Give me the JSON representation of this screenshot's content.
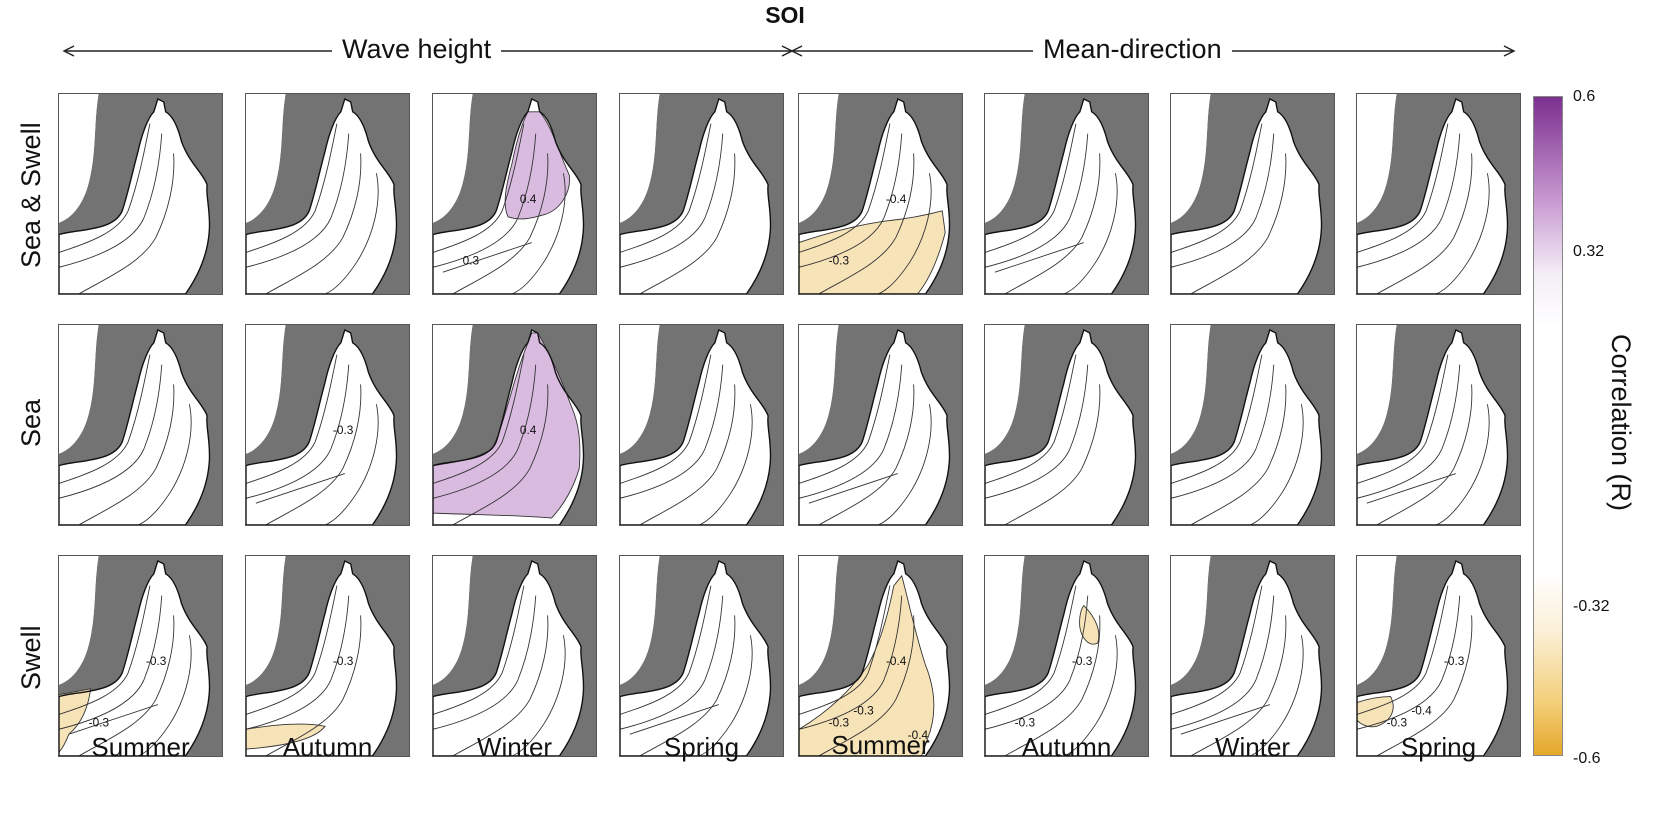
{
  "figure": {
    "title": "SOI",
    "groups": [
      {
        "id": "wave-height",
        "label": "Wave height"
      },
      {
        "id": "mean-direction",
        "label": "Mean-direction"
      }
    ],
    "rows": [
      "Sea & Swell",
      "Sea",
      "Swell"
    ],
    "columns": [
      "Summer",
      "Autumn",
      "Winter",
      "Spring",
      "Summer",
      "Autumn",
      "Winter",
      "Spring"
    ],
    "colorbar": {
      "label": "Correlation (R)",
      "ticks": [
        "0.6",
        "0.32",
        "-0.32",
        "-0.6"
      ],
      "colors": {
        "positive": "#7b2f8e",
        "positive_light": "#d7b7de",
        "neutral": "#ffffff",
        "negative_light": "#f7e2b4",
        "negative": "#e4a72a"
      }
    },
    "panel_colors": {
      "land": "#737373",
      "sea": "#ffffff",
      "contour": "#333333"
    },
    "panels": [
      {
        "row": 0,
        "col": 0,
        "fill": null,
        "labels": []
      },
      {
        "row": 0,
        "col": 1,
        "fill": null,
        "labels": []
      },
      {
        "row": 0,
        "col": 2,
        "fill": "positive",
        "labels": [
          "0.4",
          "0.3"
        ]
      },
      {
        "row": 0,
        "col": 3,
        "fill": null,
        "labels": []
      },
      {
        "row": 0,
        "col": 4,
        "fill": "negative",
        "labels": [
          "-0.4",
          "-0.3"
        ]
      },
      {
        "row": 0,
        "col": 5,
        "fill": null,
        "labels": []
      },
      {
        "row": 0,
        "col": 6,
        "fill": null,
        "labels": []
      },
      {
        "row": 0,
        "col": 7,
        "fill": null,
        "labels": []
      },
      {
        "row": 1,
        "col": 0,
        "fill": null,
        "labels": []
      },
      {
        "row": 1,
        "col": 1,
        "fill": null,
        "labels": [
          "-0.3"
        ]
      },
      {
        "row": 1,
        "col": 2,
        "fill": "positive",
        "labels": [
          "0.4"
        ]
      },
      {
        "row": 1,
        "col": 3,
        "fill": null,
        "labels": []
      },
      {
        "row": 1,
        "col": 4,
        "fill": null,
        "labels": []
      },
      {
        "row": 1,
        "col": 5,
        "fill": null,
        "labels": []
      },
      {
        "row": 1,
        "col": 6,
        "fill": null,
        "labels": []
      },
      {
        "row": 1,
        "col": 7,
        "fill": null,
        "labels": []
      },
      {
        "row": 2,
        "col": 0,
        "fill": "negative",
        "labels": [
          "-0.3",
          "-0.3"
        ]
      },
      {
        "row": 2,
        "col": 1,
        "fill": "negative",
        "labels": [
          "-0.3"
        ]
      },
      {
        "row": 2,
        "col": 2,
        "fill": null,
        "labels": []
      },
      {
        "row": 2,
        "col": 3,
        "fill": null,
        "labels": []
      },
      {
        "row": 2,
        "col": 4,
        "fill": "negative",
        "labels": [
          "-0.4",
          "-0.3",
          "-0.3",
          "-0.4"
        ]
      },
      {
        "row": 2,
        "col": 5,
        "fill": "negative",
        "labels": [
          "-0.3",
          "-0.3"
        ]
      },
      {
        "row": 2,
        "col": 6,
        "fill": null,
        "labels": []
      },
      {
        "row": 2,
        "col": 7,
        "fill": "negative",
        "labels": [
          "-0.3",
          "-0.3",
          "-0.4"
        ]
      }
    ]
  }
}
